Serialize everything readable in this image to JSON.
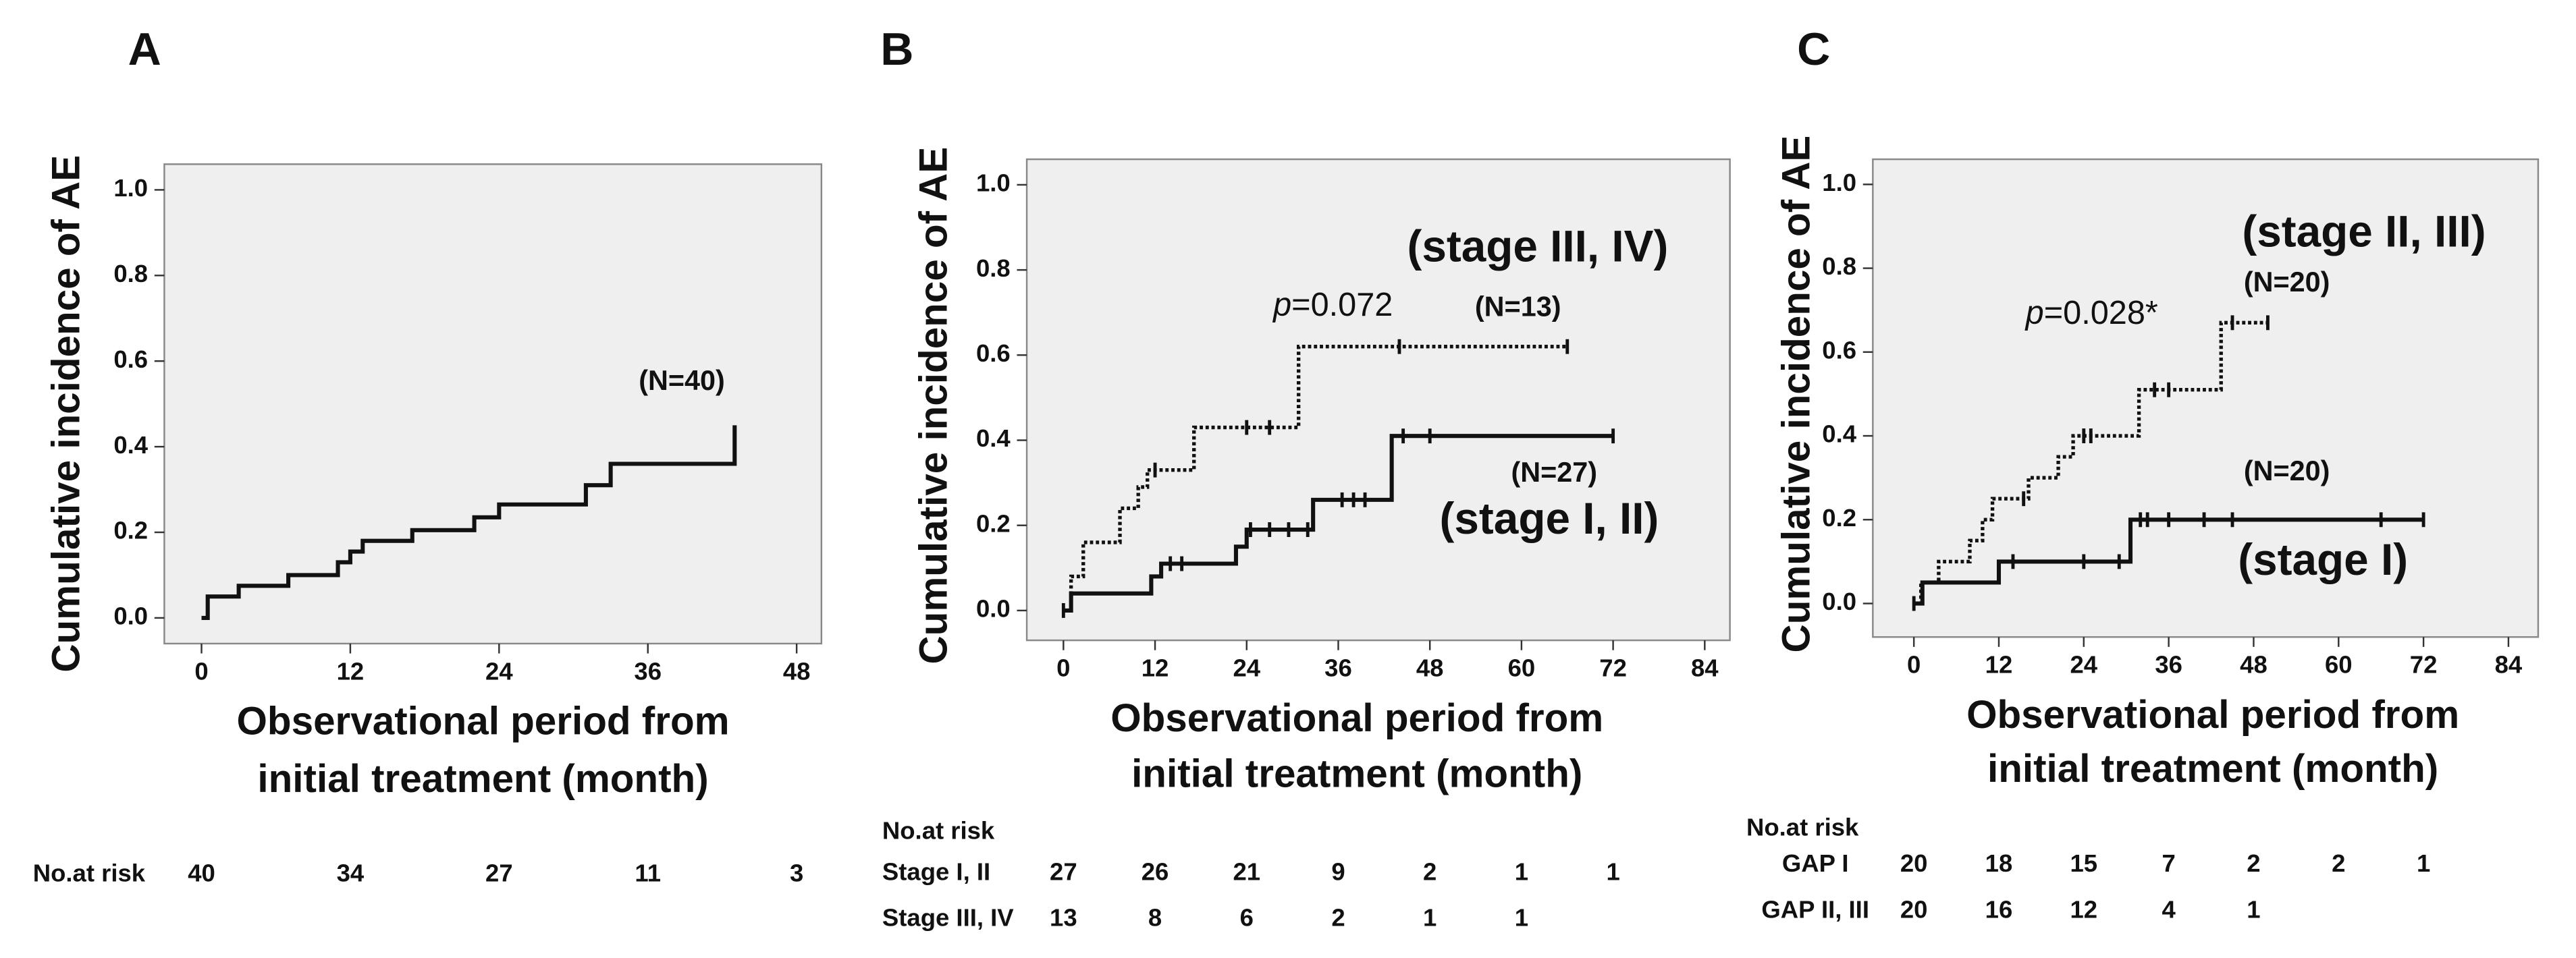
{
  "chart_data": [
    {
      "type": "step",
      "panel": "A",
      "ylabel": "Cumulative incidence of AE",
      "xlabel": [
        "Observational period from",
        "initial treatment (month)"
      ],
      "xlim": [
        -3,
        50
      ],
      "ylim": [
        -0.06,
        1.06
      ],
      "xticks": [
        0,
        12,
        24,
        36,
        48
      ],
      "yticks": [
        {
          "value": 0,
          "label": "0.0"
        },
        {
          "value": 0.2,
          "label": "0.2"
        },
        {
          "value": 0.4,
          "label": "0.4"
        },
        {
          "value": 0.6,
          "label": "0.6"
        },
        {
          "value": 0.8,
          "label": "0.8"
        },
        {
          "value": 1,
          "label": "1.0"
        }
      ],
      "series": [
        {
          "n_label": "(N=40)",
          "style": "solid",
          "color": "#111111",
          "x": [
            0,
            0.5,
            3,
            7,
            11,
            12,
            13,
            17,
            22,
            24,
            31,
            33,
            43
          ],
          "values": [
            0,
            0.05,
            0.075,
            0.1,
            0.13,
            0.155,
            0.18,
            0.205,
            0.235,
            0.265,
            0.31,
            0.36,
            0.45
          ],
          "censor_x": [],
          "censor_values": []
        }
      ],
      "risk_table": {
        "title": "No.at risk",
        "rows": [
          {
            "values": [
              40,
              34,
              27,
              11,
              3
            ]
          }
        ]
      }
    },
    {
      "type": "step",
      "panel": "B",
      "ylabel": "Cumulative incidence of AE",
      "xlabel": [
        "Observational period from",
        "initial treatment (month)"
      ],
      "xlim": [
        -4.8,
        87.3
      ],
      "ylim": [
        -0.07,
        1.06
      ],
      "xticks": [
        0,
        12,
        24,
        36,
        48,
        60,
        72,
        84
      ],
      "yticks": [
        {
          "value": 0,
          "label": "0.0"
        },
        {
          "value": 0.2,
          "label": "0.2"
        },
        {
          "value": 0.4,
          "label": "0.4"
        },
        {
          "value": 0.6,
          "label": "0.6"
        },
        {
          "value": 0.8,
          "label": "0.8"
        },
        {
          "value": 1,
          "label": "1.0"
        }
      ],
      "series": [
        {
          "name": "(stage I, II)",
          "n_label": "(N=27)",
          "style": "solid",
          "color": "#111111",
          "x": [
            0,
            1,
            11.5,
            12.8,
            22.6,
            24,
            32.7,
            43,
            72
          ],
          "values": [
            0,
            0.04,
            0.08,
            0.11,
            0.15,
            0.19,
            0.26,
            0.41,
            0.41
          ],
          "censor_x": [
            0,
            14,
            15.5,
            24.5,
            27,
            29.5,
            32,
            36.5,
            38,
            39.5,
            44.5,
            48,
            72
          ],
          "censor_values": [
            0,
            0.11,
            0.11,
            0.19,
            0.19,
            0.19,
            0.19,
            0.26,
            0.26,
            0.26,
            0.41,
            0.41,
            0.41
          ]
        },
        {
          "name": "(stage III, IV)",
          "n_label": "(N=13)",
          "style": "dotted",
          "color": "#111111",
          "x": [
            0,
            1,
            2.6,
            7.4,
            9.8,
            11,
            17.1,
            30.8,
            66
          ],
          "values": [
            0,
            0.08,
            0.16,
            0.24,
            0.29,
            0.33,
            0.43,
            0.62,
            0.62
          ],
          "censor_x": [
            12,
            24,
            27,
            44,
            66
          ],
          "censor_values": [
            0.33,
            0.43,
            0.43,
            0.62,
            0.62
          ]
        }
      ],
      "p_value": {
        "symbol": "p",
        "text": "=0.072"
      },
      "risk_table": {
        "title": "No.at risk",
        "rows": [
          {
            "label": "Stage I, II",
            "values": [
              27,
              26,
              21,
              9,
              2,
              1,
              1
            ]
          },
          {
            "label": "Stage III, IV",
            "values": [
              13,
              8,
              6,
              2,
              1,
              1
            ]
          }
        ]
      }
    },
    {
      "type": "step",
      "panel": "C",
      "ylabel": "Cumulative incidence of AE",
      "xlabel": [
        "Observational period from",
        "initial treatment (month)"
      ],
      "xlim": [
        -5.8,
        88.2
      ],
      "ylim": [
        -0.08,
        1.06
      ],
      "xticks": [
        0,
        12,
        24,
        36,
        48,
        60,
        72,
        84
      ],
      "yticks": [
        {
          "value": 0,
          "label": "0.0"
        },
        {
          "value": 0.2,
          "label": "0.2"
        },
        {
          "value": 0.4,
          "label": "0.4"
        },
        {
          "value": 0.6,
          "label": "0.6"
        },
        {
          "value": 0.8,
          "label": "0.8"
        },
        {
          "value": 1,
          "label": "1.0"
        }
      ],
      "series": [
        {
          "name": "(stage I)",
          "n_label": "(N=20)",
          "style": "solid",
          "color": "#111111",
          "x": [
            0,
            1.2,
            12,
            30.6,
            72
          ],
          "values": [
            0,
            0.05,
            0.1,
            0.2,
            0.2
          ],
          "censor_x": [
            0,
            14,
            24,
            29,
            32,
            33,
            36,
            41,
            45,
            66,
            72
          ],
          "censor_values": [
            0,
            0.1,
            0.1,
            0.1,
            0.2,
            0.2,
            0.2,
            0.2,
            0.2,
            0.2,
            0.2
          ]
        },
        {
          "name": "(stage II, III)",
          "n_label": "(N=20)",
          "style": "dotted",
          "color": "#111111",
          "x": [
            0,
            1,
            3.5,
            7.9,
            9.7,
            11.1,
            16.2,
            20.4,
            22.5,
            31.8,
            43.4,
            50
          ],
          "values": [
            0,
            0.05,
            0.1,
            0.15,
            0.2,
            0.25,
            0.3,
            0.35,
            0.4,
            0.51,
            0.67,
            0.67
          ],
          "censor_x": [
            15.5,
            24,
            25,
            34,
            36,
            45,
            50
          ],
          "censor_values": [
            0.25,
            0.4,
            0.4,
            0.51,
            0.51,
            0.67,
            0.67
          ]
        }
      ],
      "p_value": {
        "symbol": "p",
        "text": "=0.028*"
      },
      "risk_table": {
        "title": "No.at risk",
        "rows": [
          {
            "label": "GAP I",
            "values": [
              20,
              18,
              15,
              7,
              2,
              2,
              1
            ]
          },
          {
            "label": "GAP II, III",
            "values": [
              20,
              16,
              12,
              4,
              1
            ]
          }
        ]
      }
    }
  ]
}
